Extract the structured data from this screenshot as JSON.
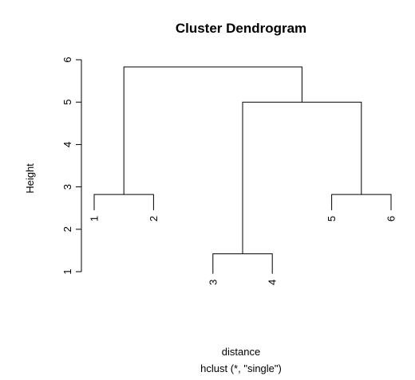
{
  "chart_data": {
    "type": "dendrogram",
    "title": "Cluster Dendrogram",
    "ylabel": "Height",
    "xlabel": "distance",
    "sub": "hclust (*, \"single\")",
    "ylim": [
      1,
      6
    ],
    "yticks": [
      1,
      2,
      3,
      4,
      5,
      6
    ],
    "leaves": [
      {
        "label": "1",
        "height": 2.45
      },
      {
        "label": "2",
        "height": 2.45
      },
      {
        "label": "3",
        "height": 0.95
      },
      {
        "label": "4",
        "height": 0.95
      },
      {
        "label": "5",
        "height": 2.45
      },
      {
        "label": "6",
        "height": 2.45
      }
    ],
    "merges": [
      {
        "left": "leaf-0",
        "right": "leaf-1",
        "height": 2.82
      },
      {
        "left": "leaf-2",
        "right": "leaf-3",
        "height": 1.42
      },
      {
        "left": "leaf-4",
        "right": "leaf-5",
        "height": 2.82
      },
      {
        "left": "merge-1",
        "right": "merge-2",
        "height": 5.0
      },
      {
        "left": "merge-0",
        "right": "merge-3",
        "height": 5.83
      }
    ]
  }
}
